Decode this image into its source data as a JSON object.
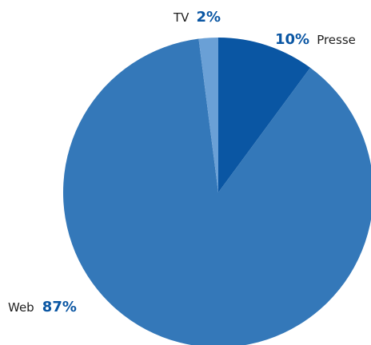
{
  "chart_data": {
    "type": "pie",
    "categories": [
      "Presse",
      "Web",
      "TV"
    ],
    "values": [
      10,
      87,
      2
    ],
    "value_labels": [
      "10%",
      "87%",
      "2%"
    ],
    "title": "",
    "legend": "none",
    "colors": {
      "Presse": "#0a56a3",
      "Web": "#3478b9",
      "TV": "#6aa0d6",
      "label_text": "#1f1f1f",
      "percent_text": "#0a56a3"
    }
  }
}
